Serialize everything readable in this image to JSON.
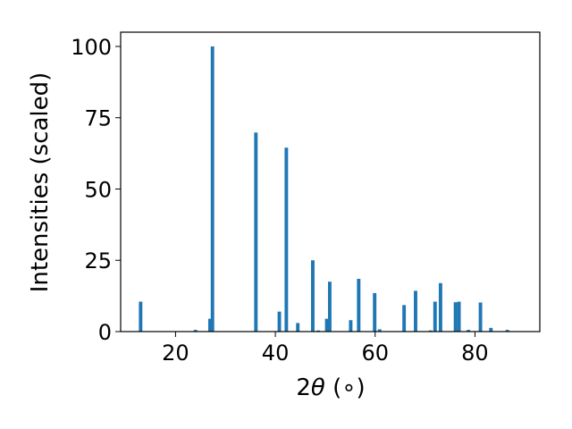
{
  "chart_data": {
    "type": "bar",
    "xlabel_main": "2",
    "xlabel_symbol": "θ",
    "xlabel_unit": " (∘)",
    "ylabel": "Intensities (scaled)",
    "xlim": [
      9,
      93
    ],
    "ylim": [
      0,
      105
    ],
    "xticks": [
      20,
      40,
      60,
      80
    ],
    "yticks": [
      0,
      25,
      50,
      75,
      100
    ],
    "bar_color": "#1f77b4",
    "bar_width": 0.7,
    "x": [
      13.0,
      24.0,
      26.9,
      27.4,
      36.1,
      40.8,
      42.2,
      44.5,
      47.5,
      48.6,
      50.3,
      50.9,
      55.1,
      56.7,
      59.9,
      60.9,
      65.8,
      68.1,
      71.1,
      72.0,
      73.1,
      76.1,
      76.8,
      78.7,
      81.1,
      83.2,
      86.5
    ],
    "y": [
      10.5,
      0.6,
      4.5,
      100.0,
      69.8,
      7.0,
      64.5,
      3.0,
      25.0,
      0.4,
      4.5,
      17.5,
      4.0,
      18.5,
      13.5,
      0.8,
      9.3,
      14.3,
      0.4,
      10.5,
      17.0,
      10.3,
      10.5,
      0.6,
      10.2,
      1.3,
      0.6
    ]
  }
}
